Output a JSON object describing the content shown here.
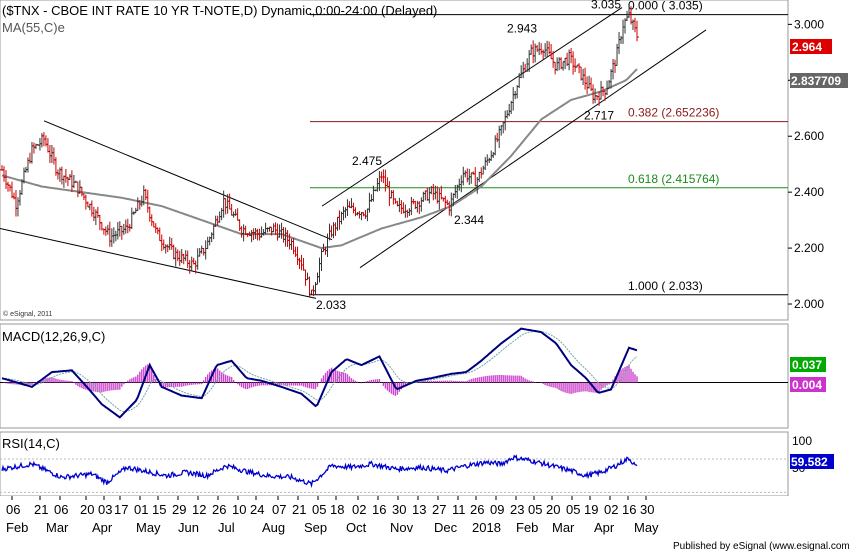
{
  "chart_data": [
    {
      "type": "candlestick",
      "title": "($TNX - CBOE INT RATE 10 YR T-NOTE,D) Dynamic,0:00-24:00 (Delayed)",
      "indicator_label": "MA(55,C)e",
      "copyright": "© eSignal, 2011",
      "ylim": [
        1.95,
        3.08
      ],
      "y_ticks": [
        "3.000",
        "2.800",
        "2.600",
        "2.400",
        "2.200",
        "2.000"
      ],
      "y_tick_values": [
        3.0,
        2.8,
        2.6,
        2.4,
        2.2,
        2.0
      ],
      "last_price": "2.964",
      "last_price_value": 2.964,
      "ma_value": "2.837709",
      "ma_value_num": 2.837709,
      "fib_levels": [
        {
          "label": "0.000 ( 3.035)",
          "value": 3.035,
          "color": "#000000"
        },
        {
          "label": "0.382 (2.652236)",
          "value": 2.652236,
          "color": "#8b1a1a"
        },
        {
          "label": "0.618 (2.415764)",
          "value": 2.415764,
          "color": "#1a8b1a"
        },
        {
          "label": "1.000 ( 2.033)",
          "value": 2.033,
          "color": "#000000"
        }
      ],
      "annotations": [
        {
          "text": "3.035",
          "value": 3.035
        },
        {
          "text": "2.943",
          "value": 2.943
        },
        {
          "text": "2.475",
          "value": 2.475
        },
        {
          "text": "2.717",
          "value": 2.717
        },
        {
          "text": "2.344",
          "value": 2.344
        },
        {
          "text": "2.033",
          "value": 2.033
        }
      ],
      "price_anchors": [
        [
          0,
          2.48
        ],
        [
          14,
          2.36
        ],
        [
          30,
          2.55
        ],
        [
          42,
          2.59
        ],
        [
          55,
          2.48
        ],
        [
          75,
          2.42
        ],
        [
          92,
          2.33
        ],
        [
          108,
          2.24
        ],
        [
          125,
          2.27
        ],
        [
          142,
          2.39
        ],
        [
          155,
          2.25
        ],
        [
          172,
          2.18
        ],
        [
          192,
          2.14
        ],
        [
          205,
          2.21
        ],
        [
          222,
          2.37
        ],
        [
          240,
          2.27
        ],
        [
          258,
          2.25
        ],
        [
          272,
          2.27
        ],
        [
          290,
          2.22
        ],
        [
          300,
          2.15
        ],
        [
          310,
          2.03
        ],
        [
          320,
          2.17
        ],
        [
          330,
          2.26
        ],
        [
          345,
          2.34
        ],
        [
          365,
          2.33
        ],
        [
          380,
          2.46
        ],
        [
          395,
          2.34
        ],
        [
          410,
          2.35
        ],
        [
          430,
          2.4
        ],
        [
          448,
          2.35
        ],
        [
          462,
          2.47
        ],
        [
          475,
          2.44
        ],
        [
          490,
          2.54
        ],
        [
          500,
          2.62
        ],
        [
          515,
          2.78
        ],
        [
          530,
          2.9
        ],
        [
          542,
          2.92
        ],
        [
          555,
          2.85
        ],
        [
          568,
          2.88
        ],
        [
          580,
          2.82
        ],
        [
          593,
          2.74
        ],
        [
          605,
          2.77
        ],
        [
          615,
          2.88
        ],
        [
          622,
          3.0
        ],
        [
          628,
          3.03
        ],
        [
          636,
          2.96
        ]
      ],
      "ma_anchors": [
        [
          0,
          2.46
        ],
        [
          40,
          2.42
        ],
        [
          80,
          2.4
        ],
        [
          120,
          2.38
        ],
        [
          160,
          2.35
        ],
        [
          200,
          2.3
        ],
        [
          240,
          2.25
        ],
        [
          280,
          2.25
        ],
        [
          320,
          2.2
        ],
        [
          340,
          2.21
        ],
        [
          380,
          2.27
        ],
        [
          420,
          2.31
        ],
        [
          450,
          2.35
        ],
        [
          480,
          2.42
        ],
        [
          510,
          2.53
        ],
        [
          540,
          2.66
        ],
        [
          570,
          2.73
        ],
        [
          600,
          2.76
        ],
        [
          625,
          2.8
        ],
        [
          636,
          2.84
        ]
      ]
    },
    {
      "type": "line",
      "title": "MACD(12,26,9,C)",
      "ylim": [
        -0.05,
        0.065
      ],
      "last_macd": "0.037",
      "last_macd_value": 0.037,
      "last_hist": "0.004",
      "last_hist_value": 0.004,
      "macd_anchors": [
        [
          0,
          0.005
        ],
        [
          15,
          0.0
        ],
        [
          30,
          -0.005
        ],
        [
          50,
          0.012
        ],
        [
          70,
          0.014
        ],
        [
          85,
          -0.005
        ],
        [
          100,
          -0.025
        ],
        [
          118,
          -0.04
        ],
        [
          135,
          -0.02
        ],
        [
          148,
          0.02
        ],
        [
          160,
          -0.005
        ],
        [
          180,
          -0.015
        ],
        [
          200,
          -0.018
        ],
        [
          215,
          0.02
        ],
        [
          230,
          0.025
        ],
        [
          245,
          0.005
        ],
        [
          260,
          0.002
        ],
        [
          280,
          -0.005
        ],
        [
          300,
          -0.013
        ],
        [
          315,
          -0.028
        ],
        [
          330,
          0.012
        ],
        [
          345,
          0.027
        ],
        [
          360,
          0.02
        ],
        [
          378,
          0.03
        ],
        [
          395,
          -0.008
        ],
        [
          415,
          0.002
        ],
        [
          430,
          0.005
        ],
        [
          450,
          0.01
        ],
        [
          465,
          0.012
        ],
        [
          480,
          0.025
        ],
        [
          500,
          0.045
        ],
        [
          520,
          0.062
        ],
        [
          540,
          0.058
        ],
        [
          555,
          0.045
        ],
        [
          570,
          0.02
        ],
        [
          585,
          0.005
        ],
        [
          597,
          -0.012
        ],
        [
          610,
          -0.008
        ],
        [
          628,
          0.04
        ],
        [
          636,
          0.037
        ]
      ]
    },
    {
      "type": "line",
      "title": "RSI(14,C)",
      "ylim": [
        28,
        100
      ],
      "y_ticks": [
        "100",
        "50"
      ],
      "y_tick_values": [
        100,
        50
      ],
      "last_value": "59.582",
      "last_value_num": 59.582,
      "rsi_anchors": [
        [
          0,
          58
        ],
        [
          30,
          64
        ],
        [
          60,
          48
        ],
        [
          90,
          52
        ],
        [
          105,
          42
        ],
        [
          125,
          60
        ],
        [
          145,
          55
        ],
        [
          165,
          50
        ],
        [
          185,
          54
        ],
        [
          205,
          50
        ],
        [
          225,
          62
        ],
        [
          245,
          55
        ],
        [
          265,
          50
        ],
        [
          290,
          48
        ],
        [
          310,
          40
        ],
        [
          330,
          62
        ],
        [
          350,
          60
        ],
        [
          370,
          64
        ],
        [
          395,
          58
        ],
        [
          420,
          60
        ],
        [
          445,
          56
        ],
        [
          465,
          62
        ],
        [
          485,
          66
        ],
        [
          500,
          64
        ],
        [
          512,
          72
        ],
        [
          530,
          68
        ],
        [
          550,
          62
        ],
        [
          570,
          56
        ],
        [
          585,
          50
        ],
        [
          600,
          54
        ],
        [
          615,
          62
        ],
        [
          628,
          71
        ],
        [
          636,
          59.582
        ]
      ]
    }
  ],
  "x_axis": {
    "day_ticks": [
      "06",
      "21",
      "06",
      "20",
      "03",
      "17",
      "01",
      "15",
      "29",
      "12",
      "26",
      "10",
      "24",
      "07",
      "21",
      "05",
      "18",
      "02",
      "16",
      "30",
      "13",
      "27",
      "11",
      "26",
      "09",
      "23",
      "05",
      "20",
      "05",
      "19",
      "02",
      "16",
      "30"
    ],
    "months": [
      "Feb",
      "Mar",
      "Apr",
      "May",
      "Jun",
      "Jul",
      "Aug",
      "Sep",
      "Oct",
      "Nov",
      "Dec",
      "2018",
      "Feb",
      "Mar",
      "Apr",
      "May"
    ]
  },
  "footer": "Published by eSignal (www.esignal.com)",
  "colors": {
    "price_up": "#333333",
    "price_down": "#cc0000",
    "ma": "#888888",
    "macd": "#00007f",
    "signal": "#6fa8a8",
    "histogram": "#cc44cc",
    "rsi": "#0000cc",
    "last_price_bg": "#dd0000",
    "ma_bg": "#666666",
    "macd_bg": "#00aa00",
    "hist_bg": "#cc33cc",
    "rsi_bg": "#0000cc"
  }
}
